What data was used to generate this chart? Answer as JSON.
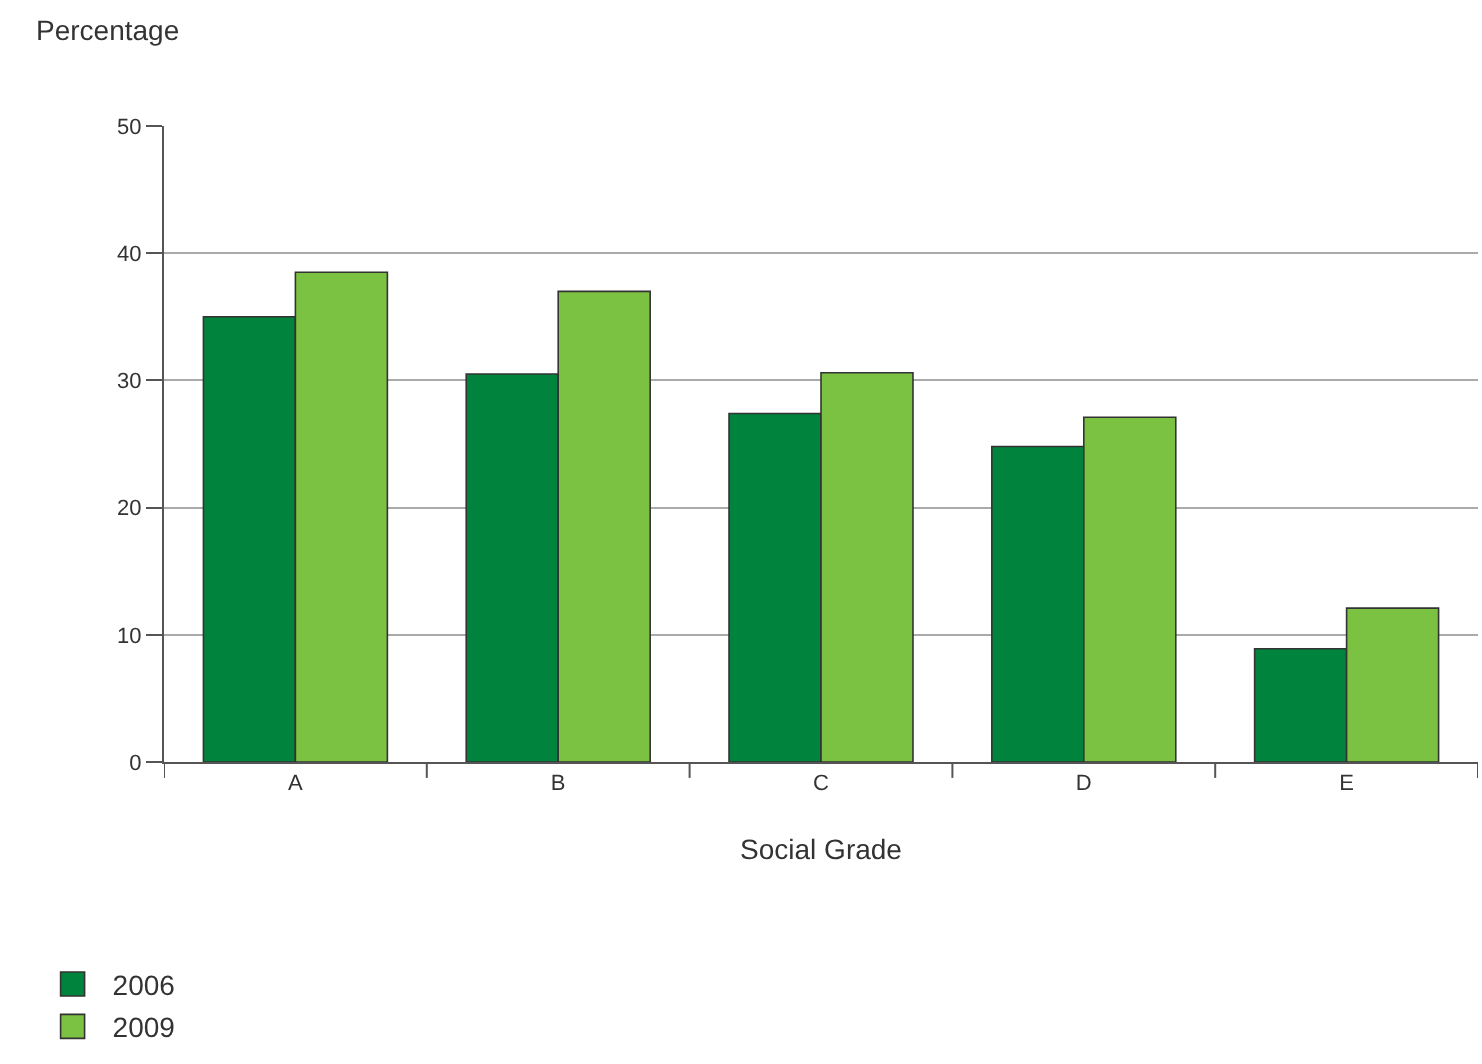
{
  "chart_data": {
    "type": "bar",
    "ylabel": "Percentage",
    "xlabel": "Social Grade",
    "categories": [
      "A",
      "B",
      "C",
      "D",
      "E"
    ],
    "series": [
      {
        "name": "2006",
        "color": "#00833d",
        "values": [
          35,
          30.5,
          27.4,
          24.8,
          8.9
        ]
      },
      {
        "name": "2009",
        "color": "#7bc142",
        "values": [
          38.5,
          37,
          30.6,
          27.1,
          12.1
        ]
      }
    ],
    "ylim": [
      0,
      50
    ],
    "yticks": [
      0,
      10,
      20,
      30,
      40,
      50
    ],
    "grid": "y",
    "legend": "bottom left"
  }
}
